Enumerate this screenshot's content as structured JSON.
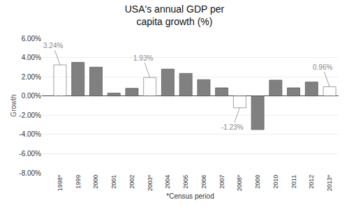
{
  "chart_data": {
    "type": "bar",
    "title": "USA's annual GDP per\ncapita growth (%)",
    "xlabel": "*Census period",
    "ylabel": "Growth",
    "categories": [
      "1998*",
      "1999",
      "2000",
      "2001",
      "2002",
      "2003*",
      "2004",
      "2005",
      "2006",
      "2007",
      "2008*",
      "2009",
      "2010",
      "2011",
      "2012",
      "2013*"
    ],
    "values": [
      3.24,
      3.5,
      3.0,
      0.3,
      0.8,
      1.93,
      2.8,
      2.35,
      1.7,
      0.85,
      -1.23,
      -3.5,
      1.65,
      0.85,
      1.45,
      0.96
    ],
    "colors": [
      "#ffffff",
      "#808080",
      "#808080",
      "#808080",
      "#808080",
      "#ffffff",
      "#808080",
      "#808080",
      "#808080",
      "#808080",
      "#ffffff",
      "#808080",
      "#808080",
      "#808080",
      "#808080",
      "#ffffff"
    ],
    "ylim": [
      -8.0,
      6.0
    ],
    "yticks": [
      {
        "value": -8.0,
        "label": "-8.00%"
      },
      {
        "value": -6.0,
        "label": "-6.00%"
      },
      {
        "value": -4.0,
        "label": "-4.00%"
      },
      {
        "value": -2.0,
        "label": "-2.00%"
      },
      {
        "value": 0.0,
        "label": "0.00%"
      },
      {
        "value": 2.0,
        "label": "2.00%"
      },
      {
        "value": 4.0,
        "label": "4.00%"
      },
      {
        "value": 6.0,
        "label": "6.00%"
      }
    ],
    "grid": true,
    "annotations": [
      {
        "text": "3.24%",
        "x": "1998*",
        "y": 3.24
      },
      {
        "text": "1.93%",
        "x": "2003*",
        "y": 1.93
      },
      {
        "text": "-1.23%",
        "x": "2008*",
        "y": -1.23
      },
      {
        "text": "0.96%",
        "x": "2013*",
        "y": 0.96
      }
    ]
  }
}
